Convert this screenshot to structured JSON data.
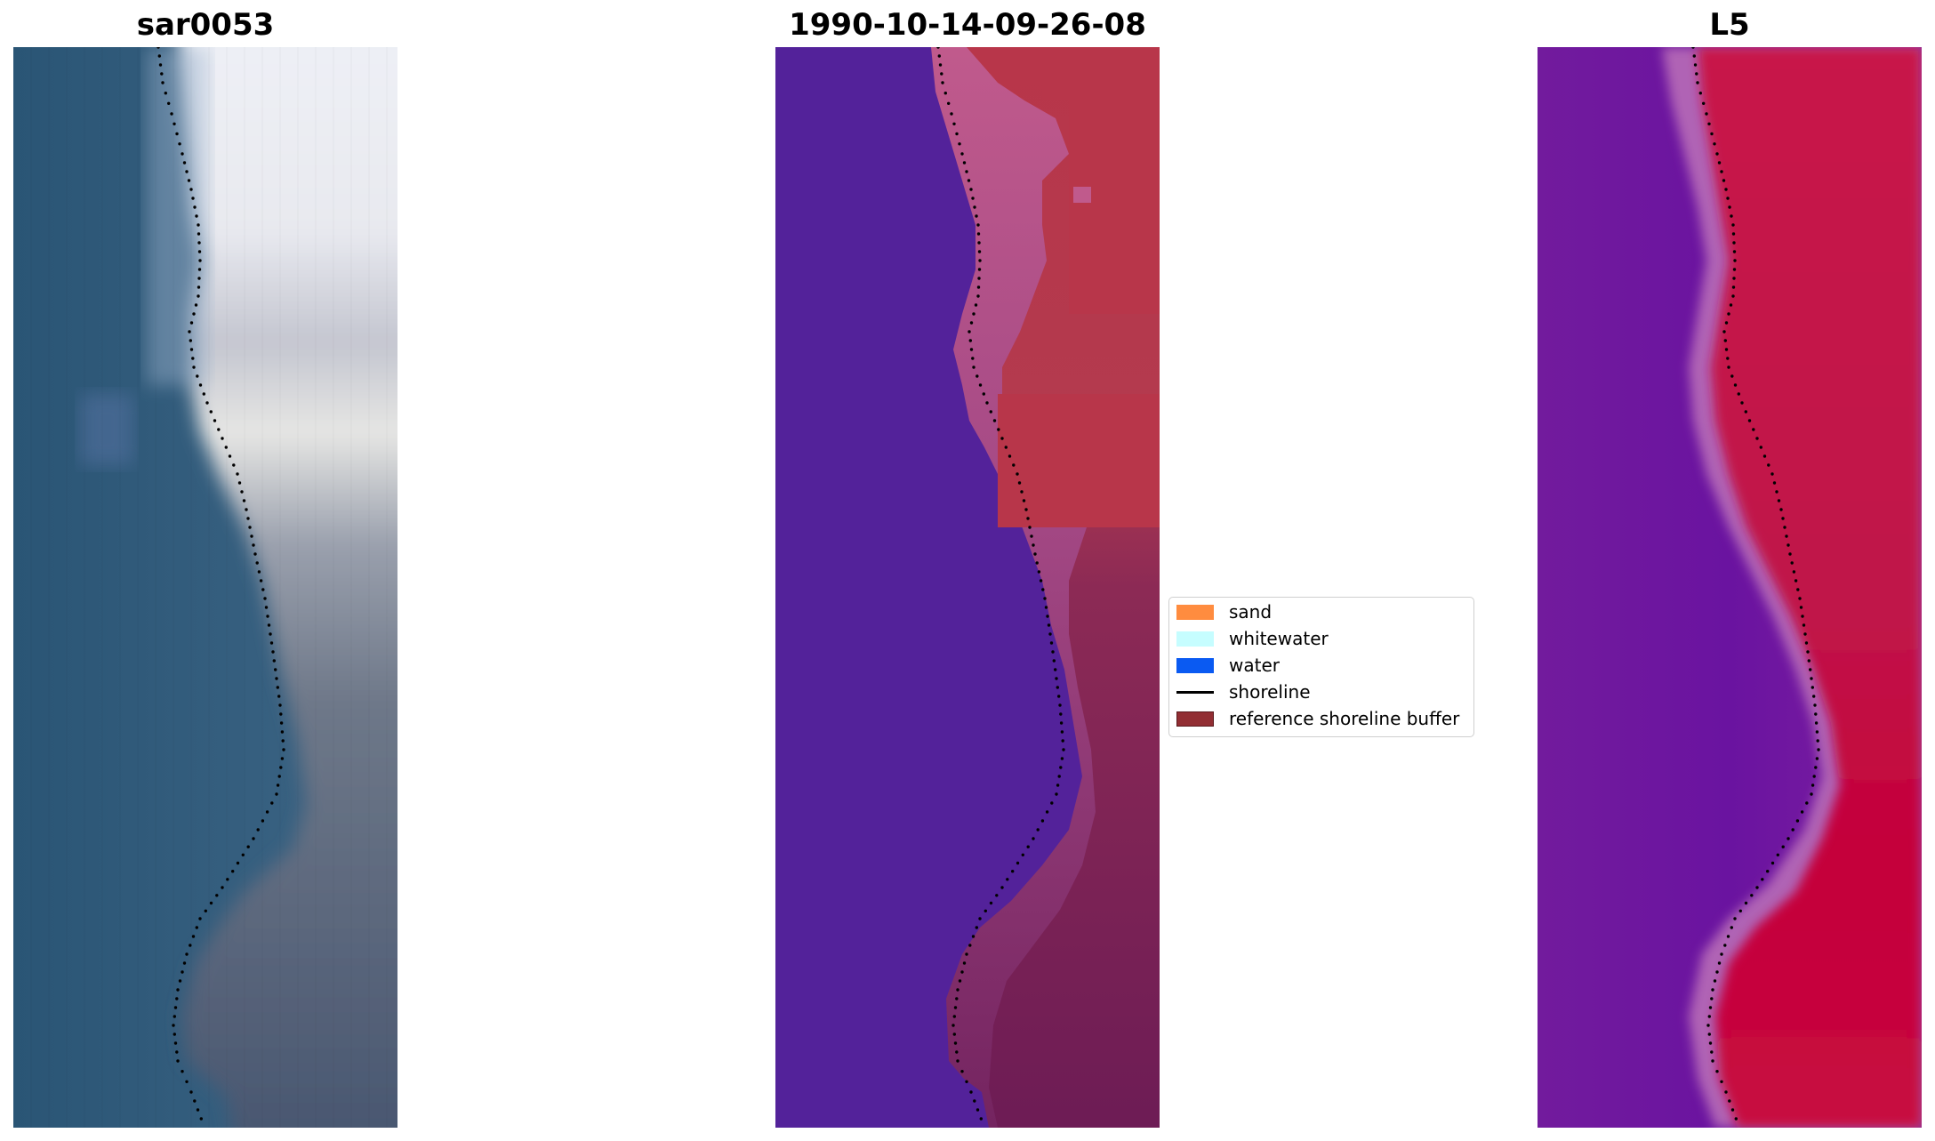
{
  "panels": [
    {
      "id": "rgb",
      "title": "sar0053"
    },
    {
      "id": "classified",
      "title": "1990-10-14-09-26-08"
    },
    {
      "id": "index",
      "title": "L5"
    }
  ],
  "legend": {
    "items": [
      {
        "label": "sand",
        "color": "#ff8c3f",
        "kind": "patch"
      },
      {
        "label": "whitewater",
        "color": "#c6fdff",
        "kind": "patch"
      },
      {
        "label": "water",
        "color": "#0a5af2",
        "kind": "patch"
      },
      {
        "label": "shoreline",
        "color": "#000000",
        "kind": "line"
      },
      {
        "label": "reference shoreline buffer",
        "color": "#922e33",
        "kind": "patch",
        "edge": "#5a1a1e"
      }
    ]
  },
  "colors": {
    "rgb_water": "#2e5675",
    "rgb_sand": "#d8dce6",
    "class_water": "#53229a",
    "class_sand_top": "#b8364a",
    "class_sand_bottom": "#6f1d55",
    "index_water": "#6a13a0",
    "index_land": "#c70f40",
    "shoreline_points": "#000000"
  }
}
